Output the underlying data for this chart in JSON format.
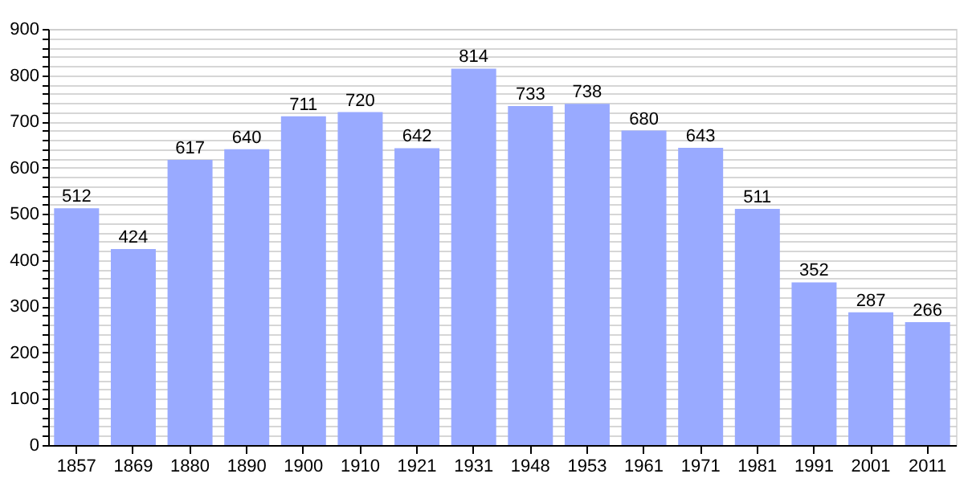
{
  "chart_data": {
    "type": "bar",
    "categories": [
      "1857",
      "1869",
      "1880",
      "1890",
      "1900",
      "1910",
      "1921",
      "1931",
      "1948",
      "1953",
      "1961",
      "1971",
      "1981",
      "1991",
      "2001",
      "2011"
    ],
    "values": [
      512,
      424,
      617,
      640,
      711,
      720,
      642,
      814,
      733,
      738,
      680,
      643,
      511,
      352,
      287,
      266
    ],
    "color": "#99aaff",
    "ylim": [
      0,
      900
    ],
    "yticks": [
      0,
      {
        "value": 20,
        "label": null
      },
      {
        "value": 40,
        "label": null
      },
      {
        "value": 60,
        "label": null
      },
      {
        "value": 80,
        "label": null
      },
      100,
      {
        "value": 120,
        "label": null
      },
      {
        "value": 140,
        "label": null
      },
      {
        "value": 160,
        "label": null
      },
      {
        "value": 180,
        "label": null
      },
      200,
      {
        "value": 220,
        "label": null
      },
      {
        "value": 240,
        "label": null
      },
      {
        "value": 260,
        "label": null
      },
      {
        "value": 280,
        "label": null
      },
      300,
      {
        "value": 320,
        "label": null
      },
      {
        "value": 340,
        "label": null
      },
      {
        "value": 360,
        "label": null
      },
      {
        "value": 380,
        "label": null
      },
      400,
      {
        "value": 420,
        "label": null
      },
      {
        "value": 440,
        "label": null
      },
      {
        "value": 460,
        "label": null
      },
      {
        "value": 480,
        "label": null
      },
      500,
      {
        "value": 520,
        "label": null
      },
      {
        "value": 540,
        "label": null
      },
      {
        "value": 560,
        "label": null
      },
      {
        "value": 580,
        "label": null
      },
      600,
      {
        "value": 620,
        "label": null
      },
      {
        "value": 640,
        "label": null
      },
      {
        "value": 660,
        "label": null
      },
      {
        "value": 680,
        "label": null
      },
      700,
      {
        "value": 720,
        "label": null
      },
      {
        "value": 740,
        "label": null
      },
      {
        "value": 760,
        "label": null
      },
      {
        "value": 780,
        "label": null
      },
      800,
      {
        "value": 820,
        "label": null
      },
      {
        "value": 840,
        "label": null
      },
      {
        "value": 860,
        "label": null
      },
      {
        "value": 880,
        "label": null
      },
      900
    ],
    "grid": "y",
    "data_labels": true
  }
}
